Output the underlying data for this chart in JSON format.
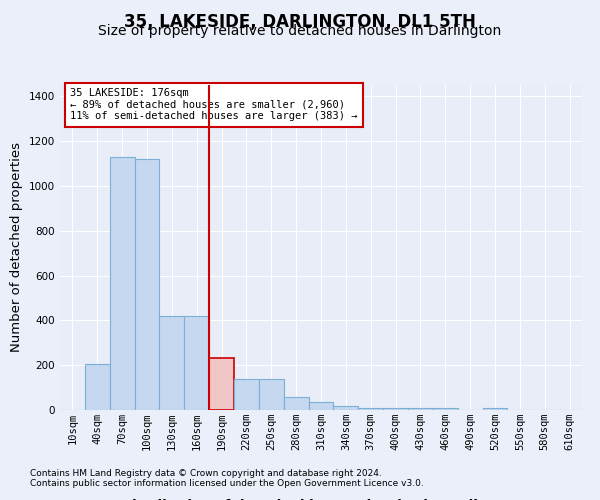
{
  "title": "35, LAKESIDE, DARLINGTON, DL1 5TH",
  "subtitle": "Size of property relative to detached houses in Darlington",
  "xlabel": "Distribution of detached houses by size in Darlington",
  "ylabel": "Number of detached properties",
  "bar_labels": [
    "10sqm",
    "40sqm",
    "70sqm",
    "100sqm",
    "130sqm",
    "160sqm",
    "190sqm",
    "220sqm",
    "250sqm",
    "280sqm",
    "310sqm",
    "340sqm",
    "370sqm",
    "400sqm",
    "430sqm",
    "460sqm",
    "490sqm",
    "520sqm",
    "550sqm",
    "580sqm",
    "610sqm"
  ],
  "bar_values": [
    0,
    205,
    1130,
    1120,
    420,
    420,
    230,
    140,
    140,
    60,
    35,
    20,
    10,
    10,
    10,
    10,
    0,
    10,
    0,
    0,
    0
  ],
  "bar_color": "#c5d8f0",
  "bar_edge_color": "#7bafd4",
  "highlight_bar_index": 6,
  "highlight_bar_color": "#f0c5c5",
  "highlight_bar_edge_color": "#cc0000",
  "vline_color": "#cc0000",
  "annotation_text": "35 LAKESIDE: 176sqm\n← 89% of detached houses are smaller (2,960)\n11% of semi-detached houses are larger (383) →",
  "annotation_box_color": "#ffffff",
  "annotation_box_edge": "#cc0000",
  "ylim": [
    0,
    1450
  ],
  "yticks": [
    0,
    200,
    400,
    600,
    800,
    1000,
    1200,
    1400
  ],
  "footnote1": "Contains HM Land Registry data © Crown copyright and database right 2024.",
  "footnote2": "Contains public sector information licensed under the Open Government Licence v3.0.",
  "background_color": "#eaeff9",
  "plot_background": "#e8edf8",
  "grid_color": "#ffffff",
  "title_fontsize": 12,
  "subtitle_fontsize": 10,
  "tick_fontsize": 7.5,
  "label_fontsize": 9.5,
  "footnote_fontsize": 6.5
}
